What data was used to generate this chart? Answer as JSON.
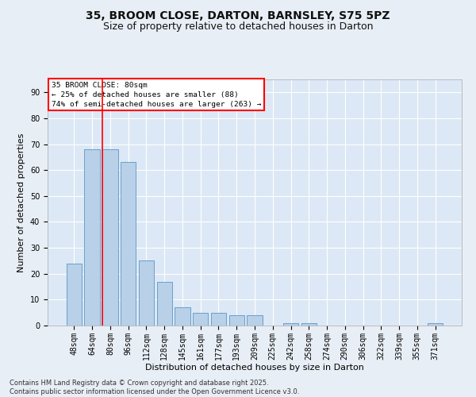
{
  "title": "35, BROOM CLOSE, DARTON, BARNSLEY, S75 5PZ",
  "subtitle": "Size of property relative to detached houses in Darton",
  "xlabel": "Distribution of detached houses by size in Darton",
  "ylabel": "Number of detached properties",
  "categories": [
    "48sqm",
    "64sqm",
    "80sqm",
    "96sqm",
    "112sqm",
    "128sqm",
    "145sqm",
    "161sqm",
    "177sqm",
    "193sqm",
    "209sqm",
    "225sqm",
    "242sqm",
    "258sqm",
    "274sqm",
    "290sqm",
    "306sqm",
    "322sqm",
    "339sqm",
    "355sqm",
    "371sqm"
  ],
  "values": [
    24,
    68,
    68,
    63,
    25,
    17,
    7,
    5,
    5,
    4,
    4,
    0,
    1,
    1,
    0,
    0,
    0,
    0,
    0,
    0,
    1
  ],
  "bar_color": "#b8d0e8",
  "bar_edge_color": "#6aa0cc",
  "red_line_index": 2,
  "ylim": [
    0,
    95
  ],
  "yticks": [
    0,
    10,
    20,
    30,
    40,
    50,
    60,
    70,
    80,
    90
  ],
  "annotation_text": "35 BROOM CLOSE: 80sqm\n← 25% of detached houses are smaller (88)\n74% of semi-detached houses are larger (263) →",
  "bg_color": "#dce8f5",
  "grid_color": "#ffffff",
  "footer_line1": "Contains HM Land Registry data © Crown copyright and database right 2025.",
  "footer_line2": "Contains public sector information licensed under the Open Government Licence v3.0.",
  "title_fontsize": 10,
  "subtitle_fontsize": 9,
  "axis_label_fontsize": 8,
  "tick_fontsize": 7,
  "footer_fontsize": 6
}
